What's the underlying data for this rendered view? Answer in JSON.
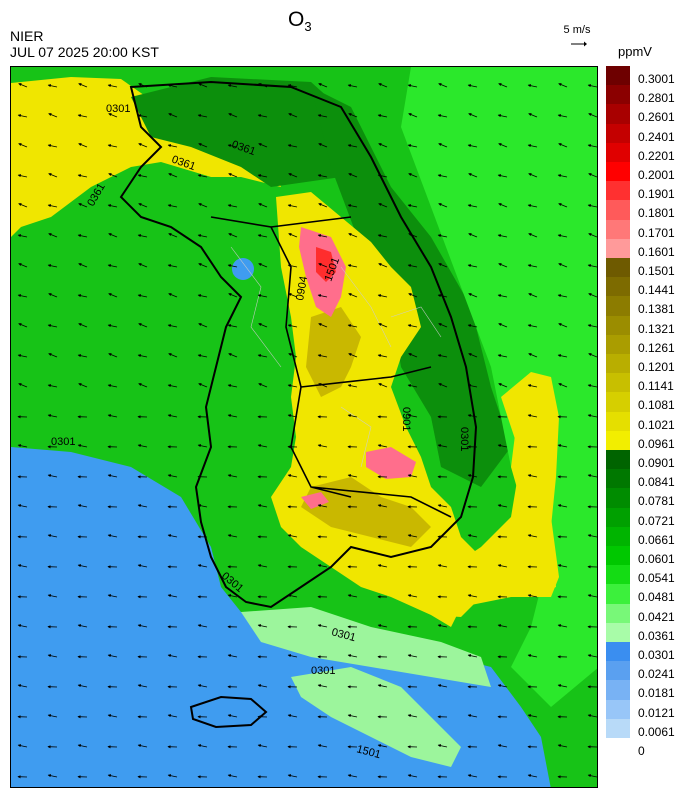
{
  "header": {
    "agency": "NIER",
    "timestamp": "JUL 07 2025 20:00 KST",
    "species": "O",
    "species_sub": "3",
    "wind_reference": "5 m/s",
    "unit": "ppmV"
  },
  "legend": {
    "labels": [
      "0.3001",
      "0.2801",
      "0.2601",
      "0.2401",
      "0.2201",
      "0.2001",
      "0.1901",
      "0.1801",
      "0.1701",
      "0.1601",
      "0.1501",
      "0.1441",
      "0.1381",
      "0.1321",
      "0.1261",
      "0.1201",
      "0.1141",
      "0.1081",
      "0.1021",
      "0.0961",
      "0.0901",
      "0.0841",
      "0.0781",
      "0.0721",
      "0.0661",
      "0.0601",
      "0.0541",
      "0.0481",
      "0.0421",
      "0.0361",
      "0.0301",
      "0.0241",
      "0.0181",
      "0.0121",
      "0.0061",
      "0"
    ],
    "colors": [
      "#6e0000",
      "#8b0000",
      "#a80000",
      "#c40000",
      "#e00000",
      "#ff0000",
      "#ff3030",
      "#ff5a5a",
      "#ff7878",
      "#ff9a9a",
      "#6e5a00",
      "#7d6b00",
      "#8c7c00",
      "#9b8d00",
      "#aa9d00",
      "#b9ae00",
      "#c8bf00",
      "#d6cf00",
      "#e5df00",
      "#f2ee00",
      "#006400",
      "#007800",
      "#008c00",
      "#00a000",
      "#00b400",
      "#00c800",
      "#14dc14",
      "#3cf03c",
      "#78f878",
      "#a8fca8",
      "#3a8ef0",
      "#5aa0f0",
      "#78b2f4",
      "#98c6f8",
      "#b8daf8"
    ]
  },
  "map": {
    "contour_labels": [
      "0301",
      "0361",
      "0361",
      "0361",
      "0301",
      "0301",
      "0301",
      "0301",
      "1501",
      "1501",
      "0904",
      "0901",
      "0301"
    ],
    "colors": {
      "sea_blue": "#3f9cf0",
      "sea_light": "#9cf59c",
      "land_green": "#17c317",
      "dark_green": "#0c8f0c",
      "bright_green": "#2be82b",
      "yellow": "#f0e600",
      "olive": "#c9b800",
      "pink": "#ff6e8c",
      "red": "#ff2d2d",
      "border": "#000000"
    }
  }
}
